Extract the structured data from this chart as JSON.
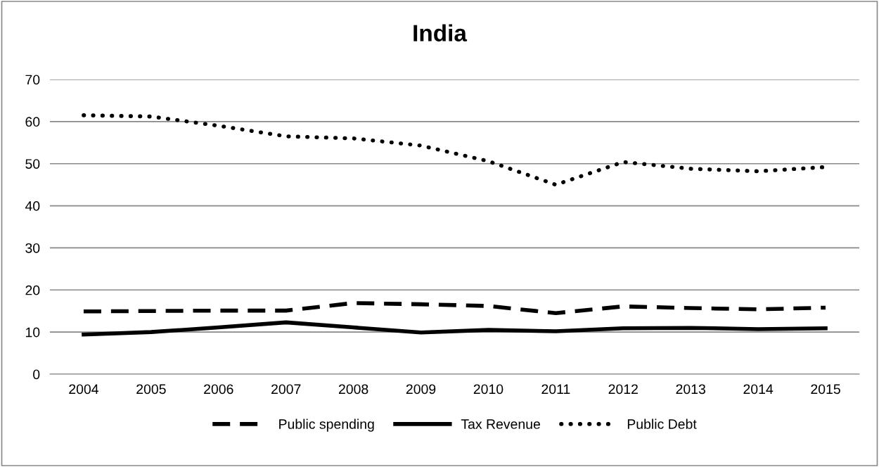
{
  "chart_data": {
    "type": "line",
    "title": "India",
    "categories": [
      "2004",
      "2005",
      "2006",
      "2007",
      "2008",
      "2009",
      "2010",
      "2011",
      "2012",
      "2013",
      "2014",
      "2015"
    ],
    "series": [
      {
        "name": "Public spending",
        "color": "#000000",
        "line_style": "dashed",
        "values": [
          14.9,
          15.0,
          15.1,
          15.1,
          16.9,
          16.6,
          16.2,
          14.5,
          16.1,
          15.7,
          15.4,
          15.8
        ]
      },
      {
        "name": "Tax Revenue",
        "color": "#000000",
        "line_style": "solid",
        "values": [
          9.4,
          10.0,
          11.1,
          12.3,
          11.1,
          9.9,
          10.5,
          10.2,
          10.9,
          11.0,
          10.7,
          10.9
        ]
      },
      {
        "name": "Public Debt",
        "color": "#000000",
        "line_style": "dotted",
        "values": [
          61.5,
          61.2,
          59.0,
          56.5,
          56.0,
          54.3,
          50.6,
          45.0,
          50.4,
          48.8,
          48.2,
          49.2
        ]
      }
    ],
    "ylim": [
      0,
      70
    ],
    "yticks": [
      0,
      10,
      20,
      30,
      40,
      50,
      60,
      70
    ],
    "grid": "y",
    "legend": "bottom",
    "marker": "none"
  }
}
